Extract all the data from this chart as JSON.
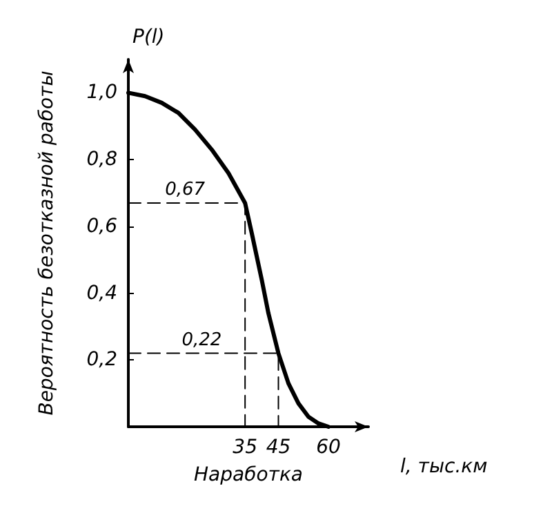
{
  "chart_data": {
    "type": "line",
    "xlabel": "Наработка",
    "ylabel": "Вероятность безотказной работы",
    "annotations": [
      "P(l)",
      "l, тыс.км",
      {
        "text": "0,67",
        "x": 17,
        "y": 0.67
      },
      {
        "text": "0,22",
        "x": 22,
        "y": 0.22
      }
    ],
    "series": [
      {
        "color": "#000000",
        "marker": "none",
        "line_style": "solid",
        "x": [
          0,
          5,
          10,
          15,
          20,
          25,
          30,
          35,
          37,
          40,
          42,
          45,
          48,
          51,
          54,
          57,
          60
        ],
        "values": [
          1.0,
          0.99,
          0.97,
          0.94,
          0.89,
          0.83,
          0.76,
          0.67,
          0.58,
          0.44,
          0.34,
          0.22,
          0.13,
          0.07,
          0.03,
          0.01,
          0.0
        ]
      },
      {
        "color": "#000000",
        "marker": "none",
        "line_style": "dashed",
        "x": [
          0,
          35,
          35
        ],
        "values": [
          0.67,
          0.67,
          0
        ]
      },
      {
        "color": "#000000",
        "marker": "none",
        "line_style": "dashed",
        "x": [
          0,
          45,
          45
        ],
        "values": [
          0.22,
          0.22,
          0
        ]
      }
    ],
    "xlim": [
      0,
      72
    ],
    "ylim": [
      0,
      1.1
    ],
    "xticks": [
      35,
      45,
      60
    ],
    "yticks": [
      {
        "value": 0.2,
        "label": "0,2"
      },
      {
        "value": 0.4,
        "label": "0,4"
      },
      {
        "value": 0.6,
        "label": "0,6"
      },
      {
        "value": 0.8,
        "label": "0,8"
      },
      {
        "value": 1.0,
        "label": "1,0"
      }
    ]
  }
}
